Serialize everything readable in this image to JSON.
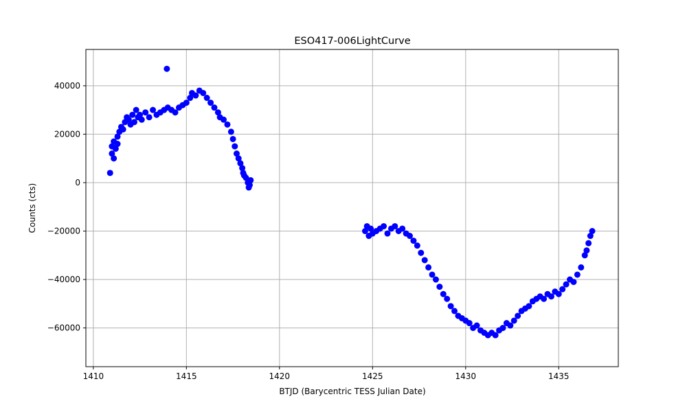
{
  "chart_data": {
    "type": "scatter",
    "title": "ESO417-006LightCurve",
    "xlabel": "BTJD (Barycentric TESS Julian Date)",
    "ylabel": "Counts (cts)",
    "xlim": [
      1409.6,
      1438.2
    ],
    "ylim": [
      -76000,
      55000
    ],
    "x_ticks": [
      1410,
      1415,
      1420,
      1425,
      1430,
      1435
    ],
    "x_tick_labels": [
      "1410",
      "1415",
      "1420",
      "1425",
      "1430",
      "1435"
    ],
    "y_ticks": [
      -60000,
      -40000,
      -20000,
      0,
      20000,
      40000
    ],
    "y_tick_labels": [
      "−60000",
      "−40000",
      "−20000",
      "0",
      "20000",
      "40000"
    ],
    "grid": true,
    "point_color": "#0000ff",
    "series": [
      {
        "x": [
          1410.9,
          1411.0,
          1411.0,
          1411.1,
          1411.1,
          1411.2,
          1411.3,
          1411.3,
          1411.4,
          1411.5,
          1411.6,
          1411.7,
          1411.8,
          1411.9,
          1412.0,
          1412.1,
          1412.2,
          1412.3,
          1412.4,
          1412.5,
          1412.6,
          1412.8,
          1413.0,
          1413.2,
          1413.4,
          1413.6,
          1413.8,
          1413.95,
          1414.0,
          1414.2,
          1414.4,
          1414.6,
          1414.8,
          1415.0,
          1415.2,
          1415.3,
          1415.5,
          1415.7,
          1415.9,
          1416.1,
          1416.3,
          1416.5,
          1416.7,
          1416.8,
          1417.0,
          1417.2,
          1417.4,
          1417.5,
          1417.6,
          1417.7,
          1417.8,
          1417.9,
          1418.0,
          1418.05,
          1418.1,
          1418.2,
          1418.3,
          1418.35,
          1418.4,
          1418.45,
          1424.6,
          1424.7,
          1424.8,
          1424.9,
          1425.0,
          1425.2,
          1425.4,
          1425.6,
          1425.8,
          1426.0,
          1426.2,
          1426.4,
          1426.6,
          1426.8,
          1427.0,
          1427.2,
          1427.4,
          1427.6,
          1427.8,
          1428.0,
          1428.2,
          1428.4,
          1428.6,
          1428.8,
          1429.0,
          1429.2,
          1429.4,
          1429.6,
          1429.8,
          1430.0,
          1430.2,
          1430.4,
          1430.6,
          1430.8,
          1431.0,
          1431.2,
          1431.4,
          1431.6,
          1431.8,
          1432.0,
          1432.2,
          1432.4,
          1432.6,
          1432.8,
          1433.0,
          1433.2,
          1433.4,
          1433.6,
          1433.8,
          1434.0,
          1434.2,
          1434.4,
          1434.6,
          1434.8,
          1435.0,
          1435.2,
          1435.4,
          1435.6,
          1435.8,
          1436.0,
          1436.2,
          1436.4,
          1436.5,
          1436.6,
          1436.7,
          1436.8
        ],
        "y": [
          4000,
          12000,
          15000,
          10000,
          17000,
          14000,
          19000,
          16000,
          21000,
          23000,
          22000,
          25000,
          27000,
          26000,
          24000,
          28000,
          25000,
          30000,
          27000,
          28000,
          26000,
          29000,
          27000,
          30000,
          28000,
          29000,
          30000,
          47000,
          31000,
          30000,
          29000,
          31000,
          32000,
          33000,
          35000,
          37000,
          36000,
          38000,
          37000,
          35000,
          33000,
          31000,
          29000,
          27000,
          26000,
          24000,
          21000,
          18000,
          15000,
          12000,
          10000,
          8000,
          6000,
          4000,
          3000,
          2000,
          0,
          -2000,
          -1000,
          1000,
          -20000,
          -18000,
          -22000,
          -19000,
          -21000,
          -20000,
          -19000,
          -18000,
          -21000,
          -19000,
          -18000,
          -20000,
          -19000,
          -21000,
          -22000,
          -24000,
          -26000,
          -29000,
          -32000,
          -35000,
          -38000,
          -40000,
          -43000,
          -46000,
          -48000,
          -51000,
          -53000,
          -55000,
          -56000,
          -57000,
          -58000,
          -60000,
          -59000,
          -61000,
          -62000,
          -63000,
          -62000,
          -63000,
          -61000,
          -60000,
          -58000,
          -59000,
          -57000,
          -55000,
          -53000,
          -52000,
          -51000,
          -49000,
          -48000,
          -47000,
          -48000,
          -46000,
          -47000,
          -45000,
          -46000,
          -44000,
          -42000,
          -40000,
          -41000,
          -38000,
          -35000,
          -30000,
          -28000,
          -25000,
          -22000,
          -20000
        ]
      }
    ]
  }
}
